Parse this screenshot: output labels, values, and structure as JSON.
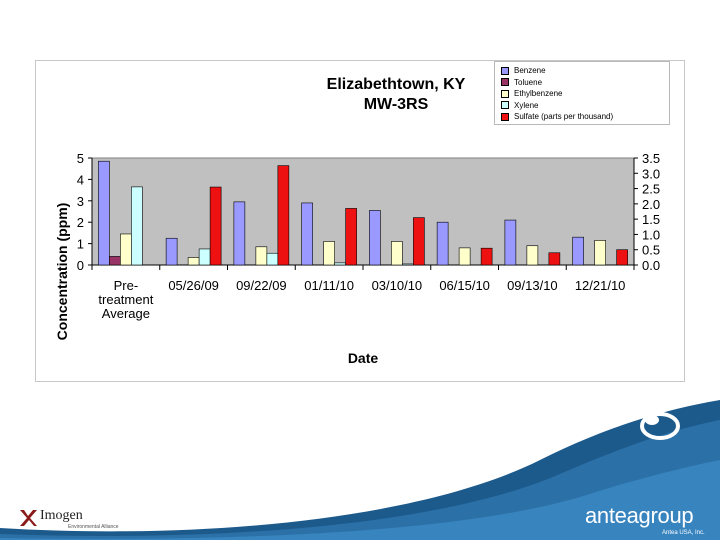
{
  "chart_data": {
    "type": "bar",
    "title": [
      "Elizabethtown, KY",
      "MW-3RS"
    ],
    "xlabel": "Date",
    "ylabel": "Concentration (ppm)",
    "ylim": [
      0,
      5
    ],
    "y_ticks": [
      "5",
      "4",
      "3",
      "2",
      "1",
      "0"
    ],
    "y2lim": [
      0,
      3.5
    ],
    "y2_ticks": [
      "3.5",
      "3.0",
      "2.5",
      "2.0",
      "1.5",
      "1.0",
      "0.5",
      "0.0"
    ],
    "grid": false,
    "legend_position": "top-right",
    "categories": [
      [
        "Pre-",
        "treatment",
        "Average"
      ],
      [
        "05/26/09"
      ],
      [
        "09/22/09"
      ],
      [
        "01/11/10"
      ],
      [
        "03/10/10"
      ],
      [
        "06/15/10"
      ],
      [
        "09/13/10"
      ],
      [
        "12/21/10"
      ]
    ],
    "series": [
      {
        "name": "Benzene",
        "axis": "left",
        "color": "#9999ff",
        "values": [
          4.85,
          1.25,
          2.95,
          2.9,
          2.55,
          2.0,
          2.1,
          1.3
        ]
      },
      {
        "name": "Toluene",
        "axis": "left",
        "color": "#993366",
        "values": [
          0.4,
          null,
          null,
          null,
          null,
          null,
          null,
          null
        ]
      },
      {
        "name": "Ethylbenzene",
        "axis": "left",
        "color": "#ffffcc",
        "values": [
          1.45,
          0.35,
          0.85,
          1.1,
          1.1,
          0.8,
          0.9,
          1.15
        ]
      },
      {
        "name": "Xylene",
        "axis": "left",
        "color": "#ccffff",
        "values": [
          3.65,
          0.75,
          0.55,
          0.1,
          0.05,
          null,
          null,
          null
        ]
      },
      {
        "name": "Sulfate (parts per thousand)",
        "axis": "right",
        "color": "#ee1111",
        "values": [
          null,
          2.55,
          3.25,
          1.85,
          1.55,
          0.55,
          0.4,
          0.5
        ]
      }
    ]
  },
  "footer": {
    "imogen_name": "Imogen",
    "imogen_tagline": "Environmental Alliance",
    "antea_logo": "anteagroup",
    "antea_copyright": "Antea USA, Inc."
  }
}
